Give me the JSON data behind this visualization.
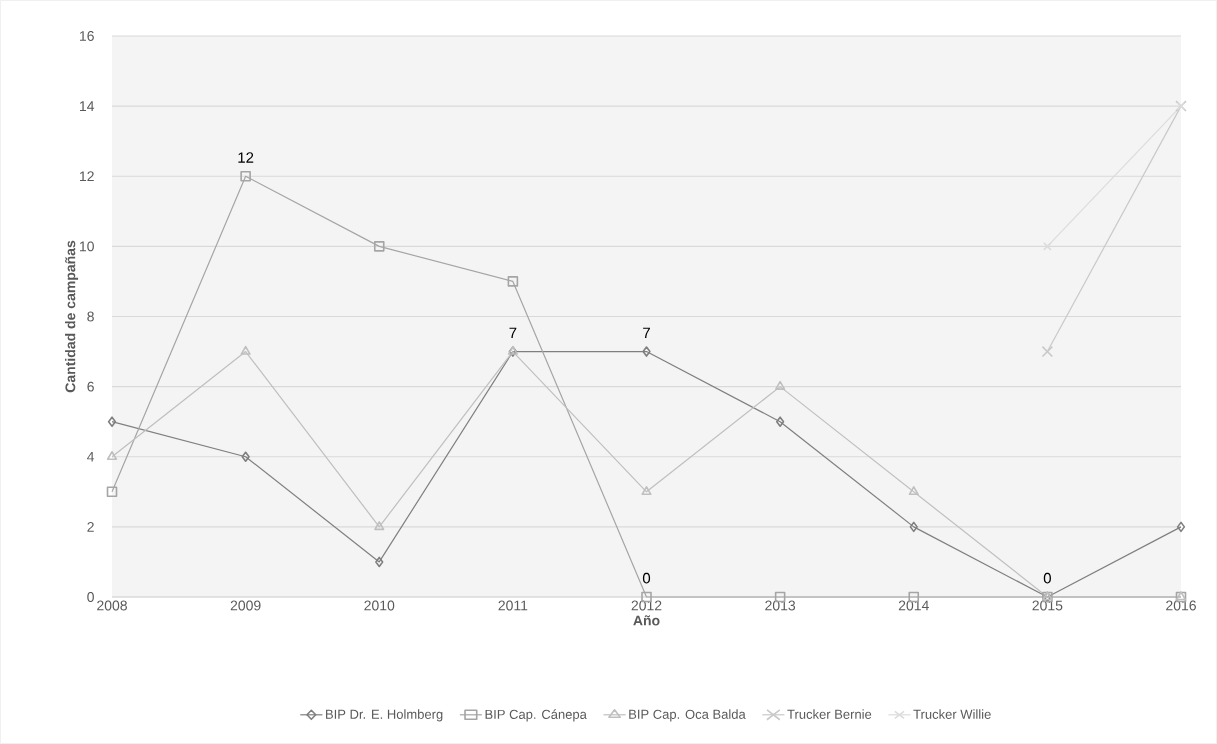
{
  "chart_data": {
    "type": "line",
    "xlabel": "Año",
    "ylabel": "Cantidad de campañas",
    "categories": [
      "2008",
      "2009",
      "2010",
      "2011",
      "2012",
      "2013",
      "2014",
      "2015",
      "2016"
    ],
    "ylim": [
      0,
      16
    ],
    "yticks": [
      0,
      2,
      4,
      6,
      8,
      10,
      12,
      14,
      16
    ],
    "grid": "y",
    "legend": "bottom",
    "series": [
      {
        "name": "BIP Dr. E. Holmberg",
        "color": "#7f7f7f",
        "marker": "diamond",
        "values": [
          5,
          4,
          1,
          7,
          7,
          5,
          2,
          0,
          2
        ],
        "value_labels": [
          null,
          null,
          null,
          "7",
          "7",
          null,
          null,
          "0",
          null
        ]
      },
      {
        "name": "BIP Cap. Cánepa",
        "color": "#a5a5a5",
        "marker": "square",
        "values": [
          3,
          12,
          10,
          9,
          0,
          0,
          0,
          0,
          0
        ],
        "value_labels": [
          null,
          "12",
          null,
          null,
          "0",
          null,
          null,
          null,
          null
        ]
      },
      {
        "name": "BIP Cap. Oca Balda",
        "color": "#bfbfbf",
        "marker": "triangle",
        "values": [
          4,
          7,
          2,
          7,
          3,
          6,
          3,
          0,
          0
        ]
      },
      {
        "name": "Trucker Bernie",
        "color": "#c9c9c9",
        "marker": "cross",
        "values": [
          null,
          null,
          null,
          null,
          null,
          null,
          null,
          7,
          14
        ]
      },
      {
        "name": "Trucker Willie",
        "color": "#dcdcdc",
        "marker": "cross",
        "values": [
          null,
          null,
          null,
          null,
          null,
          null,
          null,
          10,
          14
        ]
      }
    ]
  }
}
